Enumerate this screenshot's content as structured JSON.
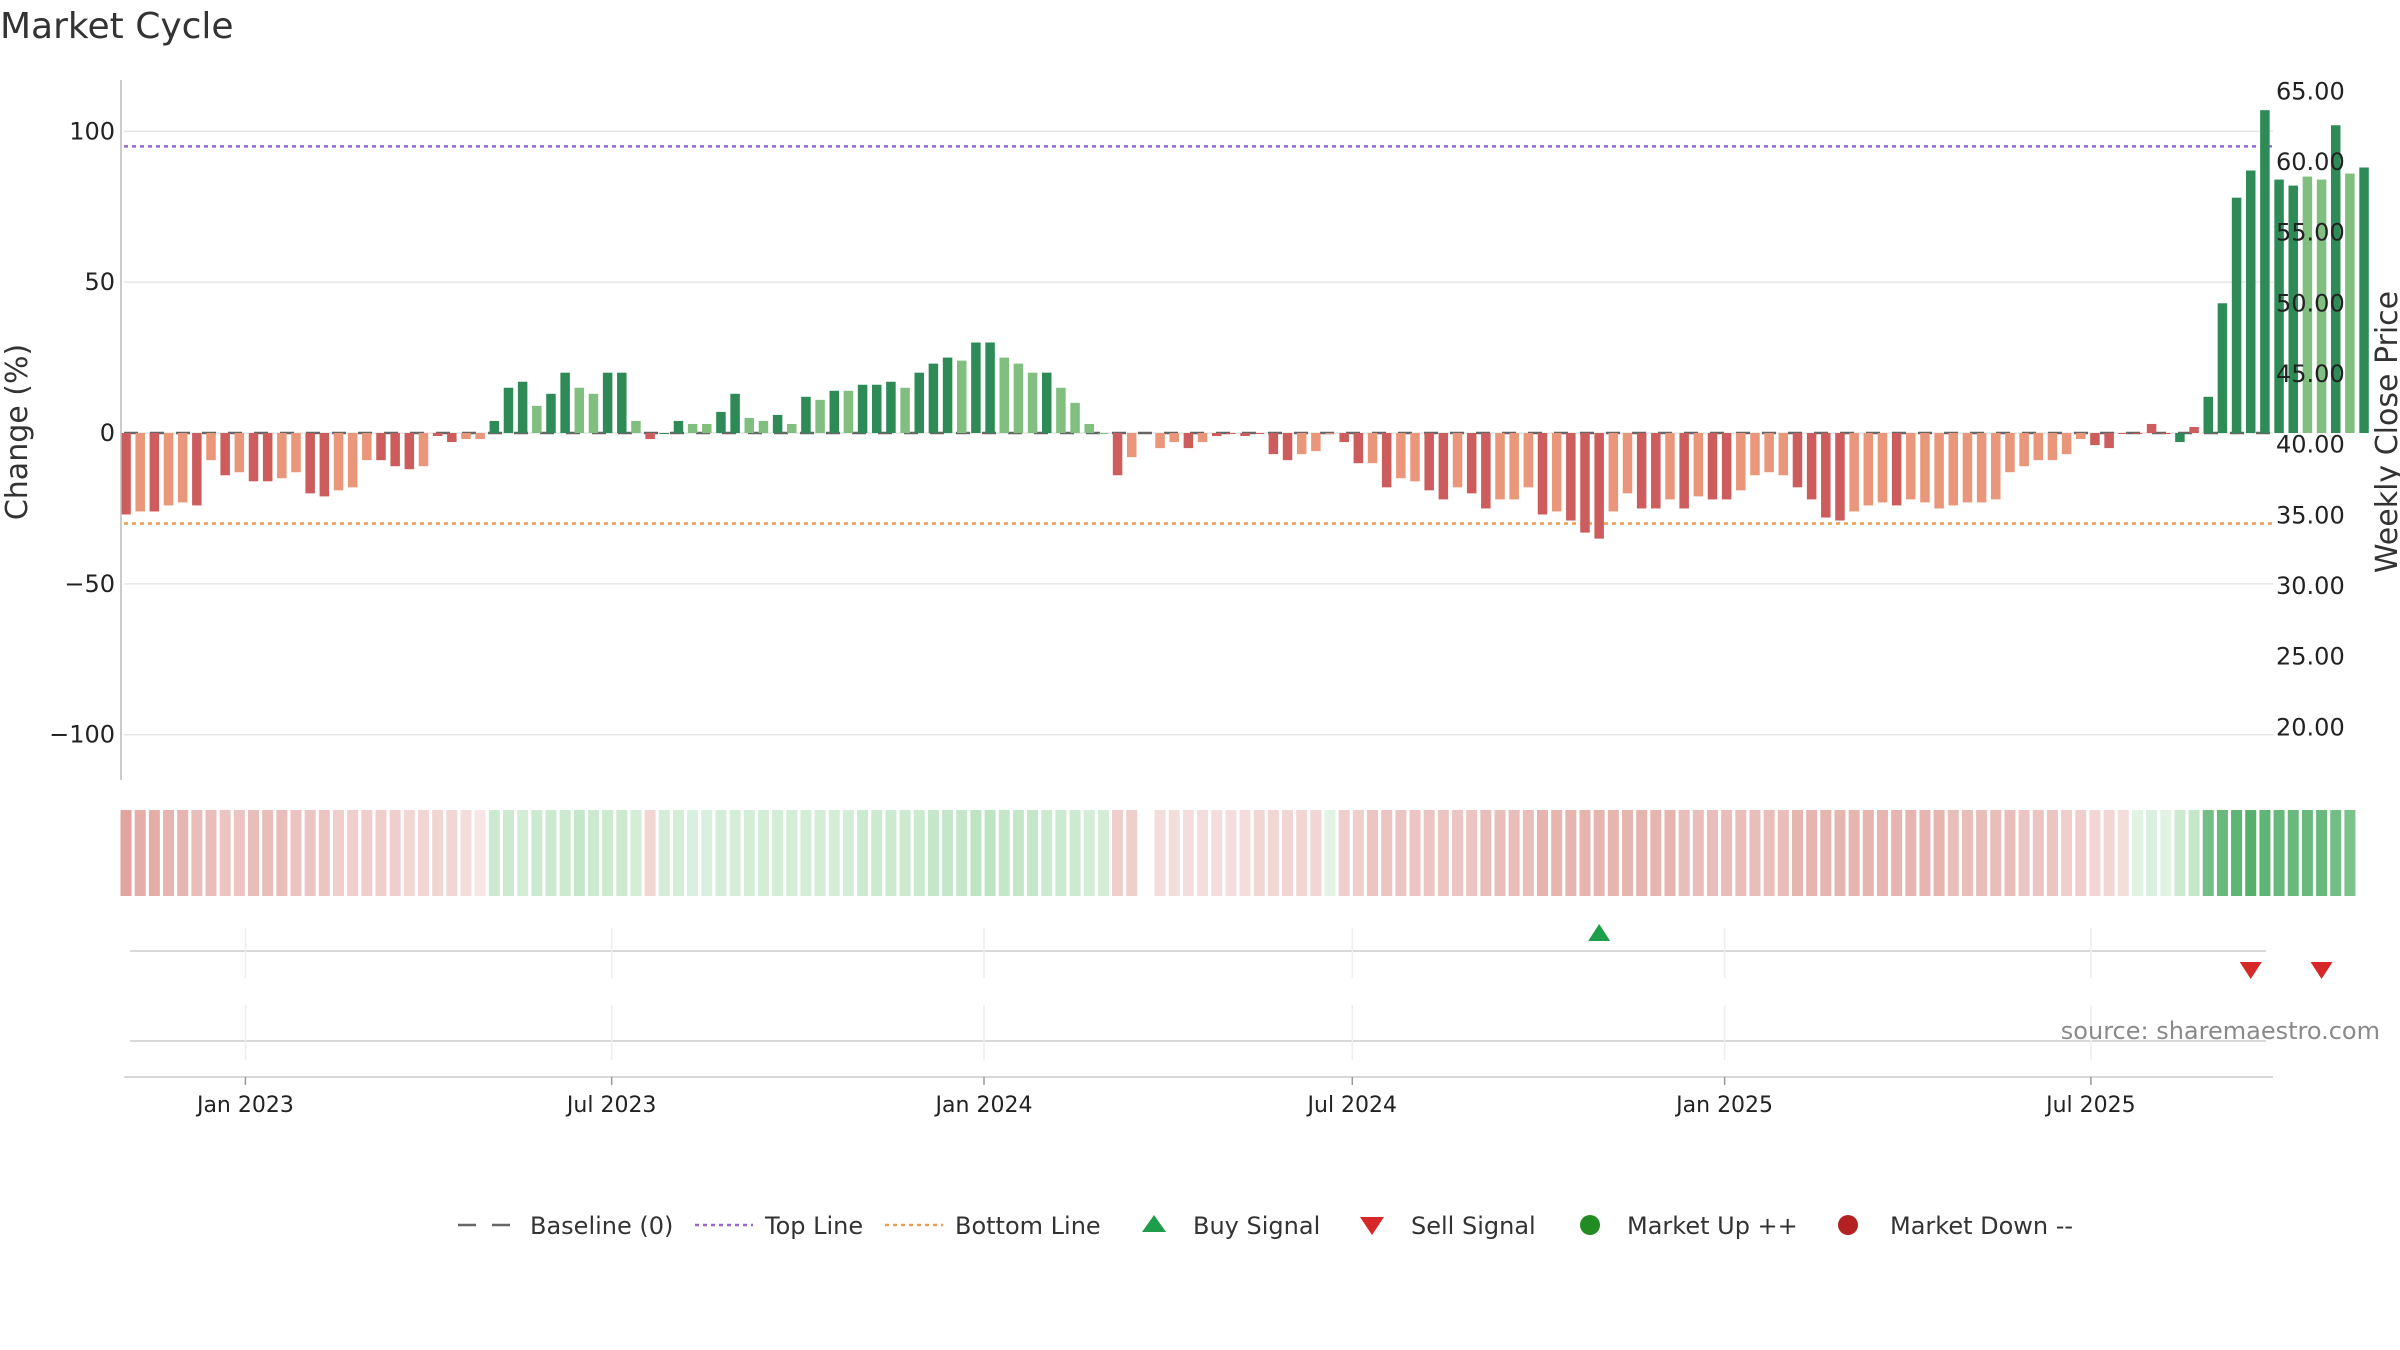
{
  "title": "Market Cycle",
  "source": "source: sharemaestro.com",
  "colors": {
    "up_strong": "#2e8b57",
    "up_light": "#80bf80",
    "down_strong": "#cd5c5c",
    "down_light": "#e9967a",
    "top_line": "#9966cc",
    "bottom_line": "#e8a050",
    "baseline": "#666666",
    "buy": "#1e9e4a",
    "sell": "#d62828",
    "market_up": "#228b22",
    "market_down": "#b22222"
  },
  "legend": [
    {
      "label": "Baseline (0)",
      "marker": "dash",
      "color": "#666666"
    },
    {
      "label": "Top Line",
      "marker": "dotted",
      "color": "#9966cc"
    },
    {
      "label": "Bottom Line",
      "marker": "dotted",
      "color": "#e8a050"
    },
    {
      "label": "Buy Signal",
      "marker": "triangle-up",
      "color": "#1e9e4a"
    },
    {
      "label": "Sell Signal",
      "marker": "triangle-down",
      "color": "#d62828"
    },
    {
      "label": "Market Up ++",
      "marker": "circle",
      "color": "#228b22"
    },
    {
      "label": "Market Down --",
      "marker": "circle",
      "color": "#b22222"
    }
  ],
  "chart_data": {
    "type": "bar",
    "title": "Market Cycle",
    "ylabel": "Change (%)",
    "y2label": "Weekly Close Price",
    "ylim": [
      -115,
      117
    ],
    "y2lim": [
      16.27,
      65.8
    ],
    "yticks": [
      100,
      50,
      0,
      -50,
      -100
    ],
    "ytick_labels": [
      "100",
      "50",
      "0",
      "−50",
      "−100"
    ],
    "y2ticks": [
      "65.00",
      "60.00",
      "55.00",
      "50.00",
      "45.00",
      "40.00",
      "35.00",
      "30.00",
      "25.00",
      "20.00"
    ],
    "xlim": [
      "2022-11-02",
      "2025-09-29"
    ],
    "xticks": [
      {
        "date": "2023-01-01",
        "label": "Jan 2023"
      },
      {
        "date": "2023-07-01",
        "label": "Jul 2023"
      },
      {
        "date": "2024-01-01",
        "label": "Jan 2024"
      },
      {
        "date": "2024-07-01",
        "label": "Jul 2024"
      },
      {
        "date": "2025-01-01",
        "label": "Jan 2025"
      },
      {
        "date": "2025-07-01",
        "label": "Jul 2025"
      }
    ],
    "first_bar_date": "2022-11-03",
    "bar_interval_days": 7,
    "top_line": 95,
    "bottom_line": -30,
    "baseline": 0,
    "values": [
      -27,
      -26,
      -26,
      -24,
      -23,
      -24,
      -9,
      -14,
      -13,
      -16,
      -16,
      -15,
      -13,
      -20,
      -21,
      -19,
      -18,
      -9,
      -9,
      -11,
      -12,
      -11,
      -1,
      -3,
      -2,
      -2,
      4,
      15,
      17,
      9,
      13,
      20,
      15,
      13,
      20,
      20,
      4,
      -2,
      0,
      4,
      3,
      3,
      7,
      13,
      5,
      4,
      6,
      3,
      12,
      11,
      14,
      14,
      16,
      16,
      17,
      15,
      20,
      23,
      25,
      24,
      30,
      30,
      25,
      23,
      20,
      20,
      15,
      10,
      3,
      0,
      -14,
      -8,
      null,
      -5,
      -3,
      -5,
      -3,
      -1,
      0,
      -1,
      0,
      -7,
      -9,
      -7,
      -6,
      0,
      -3,
      -10,
      -10,
      -18,
      -15,
      -16,
      -19,
      -22,
      -18,
      -20,
      -25,
      -22,
      -22,
      -18,
      -27,
      -26,
      -29,
      -33,
      -35,
      -26,
      -20,
      -25,
      -25,
      -22,
      -25,
      -21,
      -22,
      -22,
      -19,
      -14,
      -13,
      -14,
      -18,
      -22,
      -28,
      -29,
      -26,
      -24,
      -23,
      -24,
      -22,
      -23,
      -25,
      -24,
      -23,
      -23,
      -22,
      -13,
      -11,
      -9,
      -9,
      -7,
      -2,
      -4,
      -5,
      0,
      0,
      3,
      0,
      -3,
      2,
      12,
      43,
      78,
      87,
      107,
      84,
      82,
      85,
      84,
      102,
      86,
      88
    ],
    "colors": [
      "ds",
      "dl",
      "ds",
      "dl",
      "dl",
      "ds",
      "dl",
      "ds",
      "dl",
      "ds",
      "ds",
      "dl",
      "dl",
      "ds",
      "ds",
      "dl",
      "dl",
      "dl",
      "ds",
      "ds",
      "ds",
      "dl",
      "ds",
      "ds",
      "dl",
      "dl",
      "us",
      "us",
      "us",
      "ul",
      "us",
      "us",
      "ul",
      "ul",
      "us",
      "us",
      "ul",
      "ds",
      "us",
      "us",
      "ul",
      "ul",
      "us",
      "us",
      "ul",
      "ul",
      "us",
      "ul",
      "us",
      "ul",
      "us",
      "ul",
      "us",
      "us",
      "us",
      "ul",
      "us",
      "us",
      "us",
      "ul",
      "us",
      "us",
      "ul",
      "ul",
      "ul",
      "us",
      "ul",
      "ul",
      "ul",
      "ul",
      "ds",
      "dl",
      "dl",
      "dl",
      "dl",
      "ds",
      "dl",
      "ds",
      "ds",
      "ds",
      "ds",
      "ds",
      "ds",
      "dl",
      "dl",
      "dl",
      "ds",
      "ds",
      "dl",
      "ds",
      "dl",
      "dl",
      "ds",
      "ds",
      "dl",
      "ds",
      "ds",
      "dl",
      "dl",
      "dl",
      "ds",
      "dl",
      "ds",
      "ds",
      "ds",
      "dl",
      "dl",
      "ds",
      "ds",
      "dl",
      "ds",
      "dl",
      "ds",
      "ds",
      "dl",
      "dl",
      "dl",
      "dl",
      "ds",
      "ds",
      "ds",
      "ds",
      "dl",
      "dl",
      "dl",
      "ds",
      "dl",
      "dl",
      "dl",
      "dl",
      "dl",
      "dl",
      "dl",
      "dl",
      "dl",
      "dl",
      "dl",
      "dl",
      "dl",
      "ds",
      "ds",
      "ds",
      "ds",
      "ds",
      "ds",
      "us",
      "ds",
      "us",
      "us",
      "us",
      "us",
      "us",
      "us",
      "us",
      "ul",
      "ul",
      "us",
      "ul",
      "us",
      "ul",
      "us"
    ],
    "heat_strip": [
      -0.55,
      -0.5,
      -0.5,
      -0.45,
      -0.45,
      -0.4,
      -0.4,
      -0.35,
      -0.35,
      -0.4,
      -0.4,
      -0.4,
      -0.35,
      -0.35,
      -0.35,
      -0.3,
      -0.3,
      -0.3,
      -0.3,
      -0.3,
      -0.25,
      -0.25,
      -0.25,
      -0.25,
      -0.2,
      -0.15,
      0.35,
      0.35,
      0.3,
      0.35,
      0.35,
      0.35,
      0.4,
      0.35,
      0.35,
      0.35,
      0.3,
      -0.25,
      0.3,
      0.3,
      0.25,
      0.25,
      0.3,
      0.3,
      0.3,
      0.3,
      0.3,
      0.3,
      0.3,
      0.3,
      0.3,
      0.3,
      0.35,
      0.35,
      0.35,
      0.35,
      0.35,
      0.4,
      0.4,
      0.4,
      0.45,
      0.45,
      0.4,
      0.4,
      0.4,
      0.35,
      0.35,
      0.35,
      0.3,
      0.3,
      -0.3,
      -0.3,
      null,
      -0.2,
      -0.2,
      -0.2,
      -0.2,
      -0.2,
      -0.2,
      -0.2,
      -0.25,
      -0.25,
      -0.25,
      -0.25,
      -0.25,
      0.2,
      -0.3,
      -0.3,
      -0.35,
      -0.35,
      -0.35,
      -0.35,
      -0.35,
      -0.35,
      -0.35,
      -0.35,
      -0.4,
      -0.4,
      -0.4,
      -0.4,
      -0.45,
      -0.45,
      -0.45,
      -0.45,
      -0.45,
      -0.45,
      -0.45,
      -0.45,
      -0.45,
      -0.45,
      -0.4,
      -0.4,
      -0.4,
      -0.4,
      -0.4,
      -0.4,
      -0.4,
      -0.4,
      -0.45,
      -0.45,
      -0.45,
      -0.45,
      -0.45,
      -0.45,
      -0.45,
      -0.45,
      -0.45,
      -0.45,
      -0.45,
      -0.4,
      -0.4,
      -0.4,
      -0.4,
      -0.4,
      -0.35,
      -0.35,
      -0.35,
      -0.3,
      -0.3,
      -0.25,
      -0.25,
      -0.2,
      0.2,
      0.25,
      0.2,
      0.35,
      0.4,
      0.75,
      0.8,
      0.85,
      0.9,
      0.85,
      0.8,
      0.8,
      0.8,
      0.8,
      0.75,
      0.7
    ],
    "buy_signals": [
      {
        "index": 104
      }
    ],
    "sell_signals": [
      {
        "index": 150
      },
      {
        "index": 155
      }
    ]
  }
}
